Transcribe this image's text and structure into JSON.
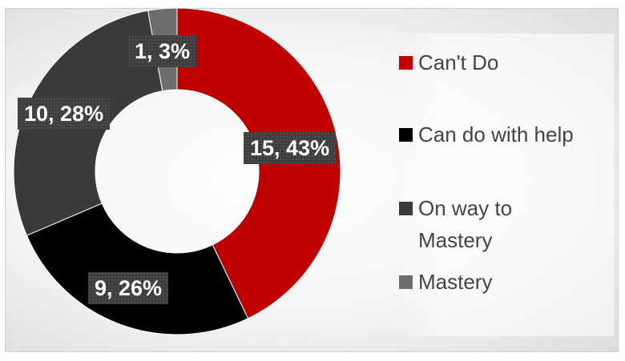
{
  "chart_data": {
    "type": "pie",
    "style": "donut",
    "categories": [
      "Can't Do",
      "Can do with help",
      "On way to Mastery",
      "Mastery"
    ],
    "values": [
      15,
      9,
      10,
      1
    ],
    "percentages": [
      43,
      26,
      28,
      3
    ],
    "data_labels": [
      "15, 43%",
      "9, 26%",
      "10, 28%",
      "1, 3%"
    ],
    "colors": [
      "#c00000",
      "#000000",
      "#3a3a3a",
      "#6e6e6e"
    ],
    "legend": {
      "placement": "right",
      "items": [
        {
          "label": "Can't Do",
          "color": "#c00000"
        },
        {
          "label": "Can do with help",
          "color": "#000000"
        },
        {
          "label": "On way to Mastery",
          "color": "#3a3a3a"
        },
        {
          "label": "Mastery",
          "color": "#6e6e6e"
        }
      ]
    }
  }
}
